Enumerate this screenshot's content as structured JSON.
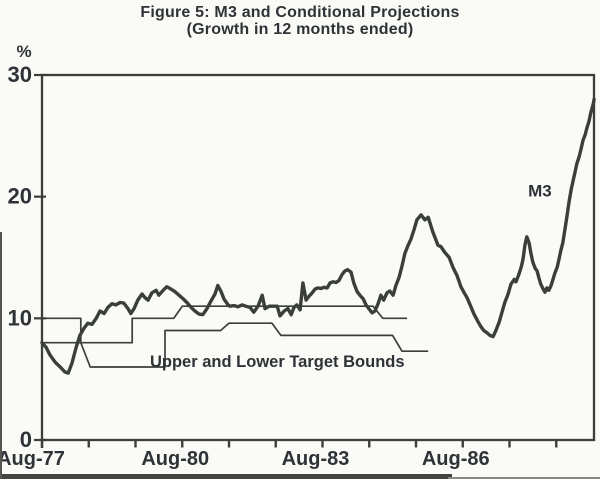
{
  "figure": {
    "title_line1": "Figure 5: M3 and Conditional Projections",
    "title_line2": "(Growth in 12 months ended)"
  },
  "chart_data": {
    "type": "line",
    "title": "Figure 5: M3 and Conditional Projections",
    "subtitle": "(Growth in 12 months ended)",
    "grid": "off",
    "legend": "none (in-plot text labels)",
    "y_axis": {
      "label": "%",
      "range": [
        0,
        30
      ],
      "ticks": [
        {
          "v": 0,
          "text": "0"
        },
        {
          "v": 10,
          "text": "10"
        },
        {
          "v": 20,
          "text": "20"
        },
        {
          "v": 30,
          "text": "30"
        }
      ]
    },
    "x_axis": {
      "unit": "years since Aug-1977 (12-month growth ended in month shown)",
      "range_years": [
        0,
        11.81
      ],
      "tick_interval_years": 1,
      "labels": [
        {
          "t": 0,
          "text": "Aug-77"
        },
        {
          "t": 3,
          "text": "Aug-80"
        },
        {
          "t": 6,
          "text": "Aug-83"
        },
        {
          "t": 9,
          "text": "Aug-86"
        }
      ]
    },
    "series": [
      {
        "name": "M3",
        "style": "thick",
        "points": [
          [
            0,
            8.0
          ],
          [
            0.09,
            7.6
          ],
          [
            0.17,
            7.0
          ],
          [
            0.28,
            6.4
          ],
          [
            0.39,
            6.0
          ],
          [
            0.49,
            5.6
          ],
          [
            0.56,
            5.5
          ],
          [
            0.64,
            6.3
          ],
          [
            0.73,
            7.6
          ],
          [
            0.81,
            8.6
          ],
          [
            0.9,
            9.2
          ],
          [
            0.98,
            9.6
          ],
          [
            1.07,
            9.5
          ],
          [
            1.16,
            10.0
          ],
          [
            1.24,
            10.6
          ],
          [
            1.33,
            10.4
          ],
          [
            1.41,
            10.9
          ],
          [
            1.5,
            11.2
          ],
          [
            1.58,
            11.1
          ],
          [
            1.67,
            11.3
          ],
          [
            1.75,
            11.25
          ],
          [
            1.84,
            10.8
          ],
          [
            1.9,
            10.4
          ],
          [
            1.97,
            10.8
          ],
          [
            2.05,
            11.5
          ],
          [
            2.14,
            12.0
          ],
          [
            2.2,
            11.7
          ],
          [
            2.27,
            11.5
          ],
          [
            2.35,
            12.1
          ],
          [
            2.44,
            12.3
          ],
          [
            2.5,
            11.9
          ],
          [
            2.59,
            12.3
          ],
          [
            2.67,
            12.6
          ],
          [
            2.76,
            12.4
          ],
          [
            2.84,
            12.2
          ],
          [
            2.93,
            11.9
          ],
          [
            3.02,
            11.6
          ],
          [
            3.1,
            11.3
          ],
          [
            3.19,
            10.9
          ],
          [
            3.27,
            10.6
          ],
          [
            3.36,
            10.35
          ],
          [
            3.44,
            10.3
          ],
          [
            3.53,
            10.8
          ],
          [
            3.61,
            11.4
          ],
          [
            3.7,
            12.0
          ],
          [
            3.76,
            12.7
          ],
          [
            3.83,
            12.2
          ],
          [
            3.89,
            11.6
          ],
          [
            3.98,
            11.1
          ],
          [
            4.02,
            11.0
          ],
          [
            4.11,
            11.05
          ],
          [
            4.19,
            10.95
          ],
          [
            4.28,
            11.1
          ],
          [
            4.36,
            11.0
          ],
          [
            4.45,
            10.9
          ],
          [
            4.53,
            10.5
          ],
          [
            4.62,
            11.0
          ],
          [
            4.71,
            11.9
          ],
          [
            4.77,
            10.8
          ],
          [
            4.86,
            11.0
          ],
          [
            4.94,
            11.0
          ],
          [
            5.03,
            11.0
          ],
          [
            5.09,
            10.2
          ],
          [
            5.18,
            10.6
          ],
          [
            5.26,
            10.8
          ],
          [
            5.33,
            10.3
          ],
          [
            5.39,
            10.9
          ],
          [
            5.45,
            11.1
          ],
          [
            5.52,
            10.7
          ],
          [
            5.58,
            12.9
          ],
          [
            5.65,
            11.5
          ],
          [
            5.71,
            11.8
          ],
          [
            5.78,
            12.1
          ],
          [
            5.84,
            12.4
          ],
          [
            5.9,
            12.5
          ],
          [
            5.97,
            12.45
          ],
          [
            6.03,
            12.55
          ],
          [
            6.1,
            12.5
          ],
          [
            6.16,
            12.9
          ],
          [
            6.22,
            13.0
          ],
          [
            6.29,
            12.95
          ],
          [
            6.35,
            13.1
          ],
          [
            6.42,
            13.6
          ],
          [
            6.48,
            13.9
          ],
          [
            6.54,
            14.0
          ],
          [
            6.61,
            13.8
          ],
          [
            6.67,
            12.9
          ],
          [
            6.74,
            12.2
          ],
          [
            6.8,
            11.9
          ],
          [
            6.87,
            11.6
          ],
          [
            6.93,
            11.1
          ],
          [
            6.99,
            10.8
          ],
          [
            7.06,
            10.45
          ],
          [
            7.12,
            10.6
          ],
          [
            7.19,
            11.2
          ],
          [
            7.25,
            11.9
          ],
          [
            7.31,
            11.5
          ],
          [
            7.38,
            12.1
          ],
          [
            7.44,
            12.25
          ],
          [
            7.51,
            11.9
          ],
          [
            7.57,
            12.7
          ],
          [
            7.64,
            13.4
          ],
          [
            7.7,
            14.3
          ],
          [
            7.76,
            15.3
          ],
          [
            7.83,
            16.0
          ],
          [
            7.89,
            16.5
          ],
          [
            7.96,
            17.3
          ],
          [
            8.02,
            18.1
          ],
          [
            8.11,
            18.5
          ],
          [
            8.19,
            18.1
          ],
          [
            8.26,
            18.3
          ],
          [
            8.36,
            17.1
          ],
          [
            8.47,
            16.0
          ],
          [
            8.53,
            15.9
          ],
          [
            8.62,
            15.4
          ],
          [
            8.71,
            15.0
          ],
          [
            8.79,
            14.2
          ],
          [
            8.88,
            13.5
          ],
          [
            8.96,
            12.6
          ],
          [
            9.03,
            12.1
          ],
          [
            9.09,
            11.7
          ],
          [
            9.18,
            10.9
          ],
          [
            9.24,
            10.35
          ],
          [
            9.33,
            9.7
          ],
          [
            9.39,
            9.3
          ],
          [
            9.45,
            9.0
          ],
          [
            9.52,
            8.8
          ],
          [
            9.58,
            8.6
          ],
          [
            9.65,
            8.5
          ],
          [
            9.71,
            9.0
          ],
          [
            9.78,
            9.7
          ],
          [
            9.84,
            10.5
          ],
          [
            9.9,
            11.3
          ],
          [
            9.97,
            12.0
          ],
          [
            10.03,
            12.8
          ],
          [
            10.1,
            13.2
          ],
          [
            10.14,
            13.0
          ],
          [
            10.2,
            13.6
          ],
          [
            10.25,
            14.2
          ],
          [
            10.29,
            14.9
          ],
          [
            10.33,
            16.0
          ],
          [
            10.37,
            16.7
          ],
          [
            10.42,
            16.2
          ],
          [
            10.46,
            15.3
          ],
          [
            10.5,
            14.6
          ],
          [
            10.55,
            14.1
          ],
          [
            10.59,
            13.9
          ],
          [
            10.63,
            13.3
          ],
          [
            10.67,
            12.8
          ],
          [
            10.72,
            12.4
          ],
          [
            10.76,
            12.15
          ],
          [
            10.8,
            12.5
          ],
          [
            10.84,
            12.3
          ],
          [
            10.89,
            12.7
          ],
          [
            10.93,
            13.2
          ],
          [
            10.97,
            13.7
          ],
          [
            11.02,
            14.2
          ],
          [
            11.06,
            14.9
          ],
          [
            11.1,
            15.6
          ],
          [
            11.14,
            16.2
          ],
          [
            11.19,
            17.4
          ],
          [
            11.23,
            18.4
          ],
          [
            11.27,
            19.5
          ],
          [
            11.32,
            20.6
          ],
          [
            11.36,
            21.3
          ],
          [
            11.4,
            22.0
          ],
          [
            11.44,
            22.7
          ],
          [
            11.49,
            23.3
          ],
          [
            11.53,
            23.9
          ],
          [
            11.57,
            24.6
          ],
          [
            11.62,
            25.1
          ],
          [
            11.66,
            25.7
          ],
          [
            11.7,
            26.2
          ],
          [
            11.74,
            26.9
          ],
          [
            11.79,
            27.6
          ],
          [
            11.81,
            28.0
          ]
        ]
      },
      {
        "name": "Upper Target Bound",
        "style": "thin-step",
        "points": [
          [
            0,
            10
          ],
          [
            0.83,
            10
          ],
          [
            0.83,
            8
          ],
          [
            1.93,
            8
          ],
          [
            1.93,
            10
          ],
          [
            2.82,
            10
          ],
          [
            3.0,
            11
          ],
          [
            7.08,
            11
          ],
          [
            7.29,
            10
          ],
          [
            7.81,
            10
          ]
        ]
      },
      {
        "name": "Lower Target Bound",
        "style": "thin-step",
        "points": [
          [
            0,
            8
          ],
          [
            0.83,
            8
          ],
          [
            1.03,
            6
          ],
          [
            2.63,
            6
          ],
          [
            2.63,
            9
          ],
          [
            3.82,
            9
          ],
          [
            4.0,
            9.6
          ],
          [
            4.92,
            9.6
          ],
          [
            5.11,
            8.6
          ],
          [
            7.5,
            8.6
          ],
          [
            7.7,
            7.3
          ],
          [
            8.26,
            7.3
          ]
        ]
      }
    ],
    "annotations": [
      {
        "id": "m3_label",
        "text": "M3",
        "t": 10.65,
        "v": 20.5,
        "anchor": "middle"
      },
      {
        "id": "bounds_label",
        "text": "Upper and Lower Target Bounds",
        "t": 2.31,
        "v": 6.5,
        "anchor": "start"
      }
    ],
    "colors": {
      "ink": "#3a3f3c",
      "text": "#2e3337",
      "background": "#fafaf6"
    }
  }
}
